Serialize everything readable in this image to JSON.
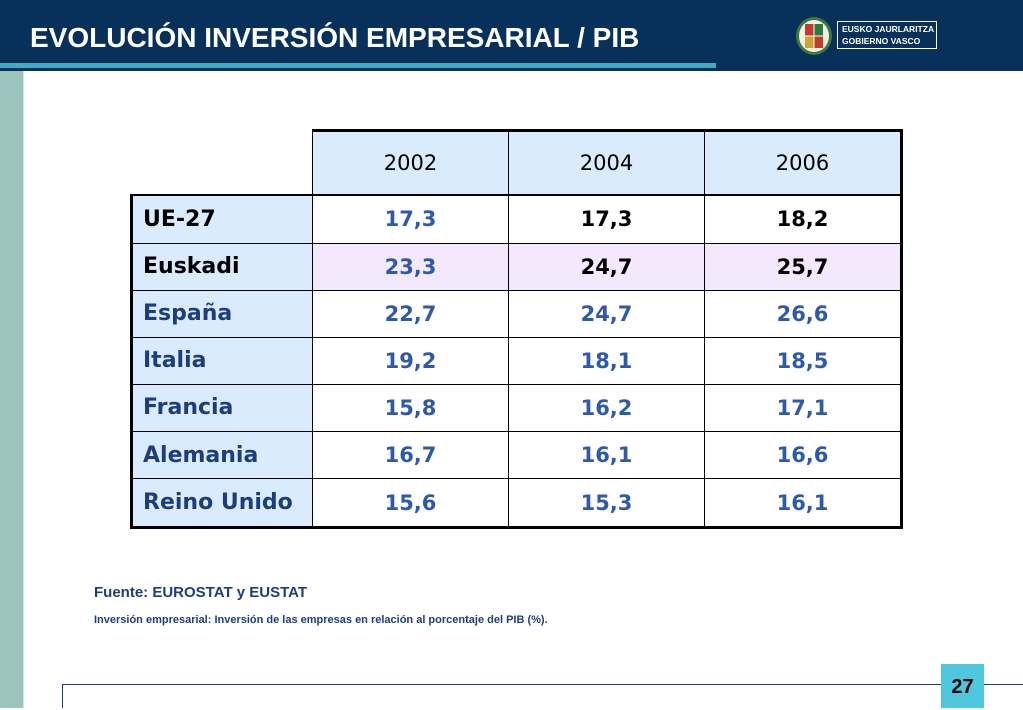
{
  "slide": {
    "title": "EVOLUCIÓN INVERSIÓN EMPRESARIAL / PIB",
    "page_number": "27"
  },
  "logo": {
    "line1": "EUSKO JAURLARITZA",
    "line2": "GOBIERNO VASCO"
  },
  "table": {
    "columns": [
      "2002",
      "2004",
      "2006"
    ],
    "rows": [
      {
        "label": "UE-27",
        "values": [
          "17,3",
          "17,3",
          "18,2"
        ]
      },
      {
        "label": "Euskadi",
        "values": [
          "23,3",
          "24,7",
          "25,7"
        ]
      },
      {
        "label": "España",
        "values": [
          "22,7",
          "24,7",
          "26,6"
        ]
      },
      {
        "label": "Italia",
        "values": [
          "19,2",
          "18,1",
          "18,5"
        ]
      },
      {
        "label": "Francia",
        "values": [
          "15,8",
          "16,2",
          "17,1"
        ]
      },
      {
        "label": "Alemania",
        "values": [
          "16,7",
          "16,1",
          "16,6"
        ]
      },
      {
        "label": "Reino Unido",
        "values": [
          "15,6",
          "15,3",
          "16,1"
        ]
      }
    ]
  },
  "footnotes": {
    "source": "Fuente: EUROSTAT y EUSTAT",
    "definition": "Inversión empresarial: Inversión de las empresas en relación al porcentaje del PIB (%)."
  },
  "colors": {
    "header_bg": "#07315a",
    "accent_line": "#3fa9c8",
    "side_band": "#9bc4bc",
    "header_cell_bg": "#d9ebfc",
    "highlight_row_bg": "#f3e8fc",
    "value_blue": "#2e5aa8",
    "label_blue": "#1c3f7c",
    "page_badge": "#4ec6dc"
  }
}
